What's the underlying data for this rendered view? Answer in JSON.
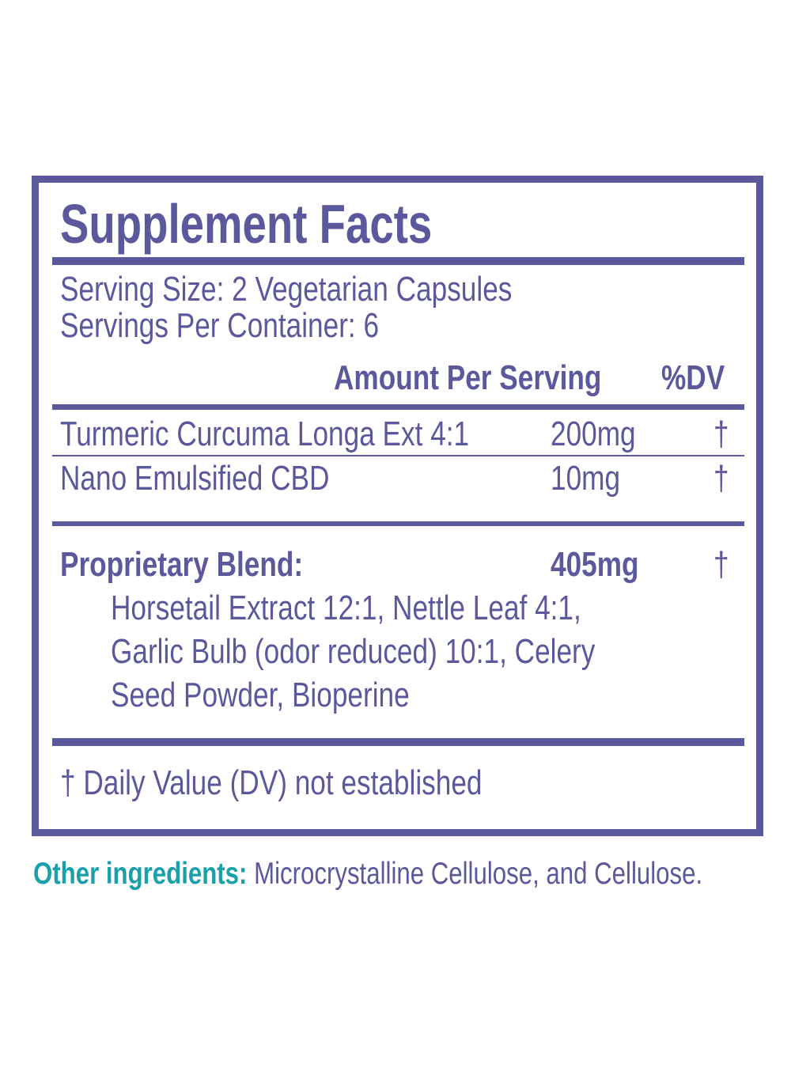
{
  "title": "Supplement Facts",
  "serving_size": "Serving Size: 2 Vegetarian Capsules",
  "servings_per_container": "Servings Per Container: 6",
  "header": {
    "amount": "Amount Per Serving",
    "dv": "%DV"
  },
  "rows": [
    {
      "name": "Turmeric Curcuma Longa Ext 4:1",
      "amount": "200mg",
      "dv": "†"
    },
    {
      "name": "Nano Emulsified CBD",
      "amount": "10mg",
      "dv": "†"
    }
  ],
  "blend": {
    "name": "Proprietary Blend:",
    "amount": "405mg",
    "dv": "†",
    "lines": [
      "Horsetail Extract 12:1, Nettle Leaf 4:1,",
      "Garlic Bulb (odor reduced) 10:1, Celery",
      "Seed Powder, Bioperine"
    ]
  },
  "footnote": "† Daily Value (DV) not established",
  "other": {
    "label": "Other ingredients:",
    "text": " Microcrystalline Cellulose, and Cellulose."
  },
  "colors": {
    "primary": "#5b589c",
    "accent": "#1aa0aa"
  }
}
